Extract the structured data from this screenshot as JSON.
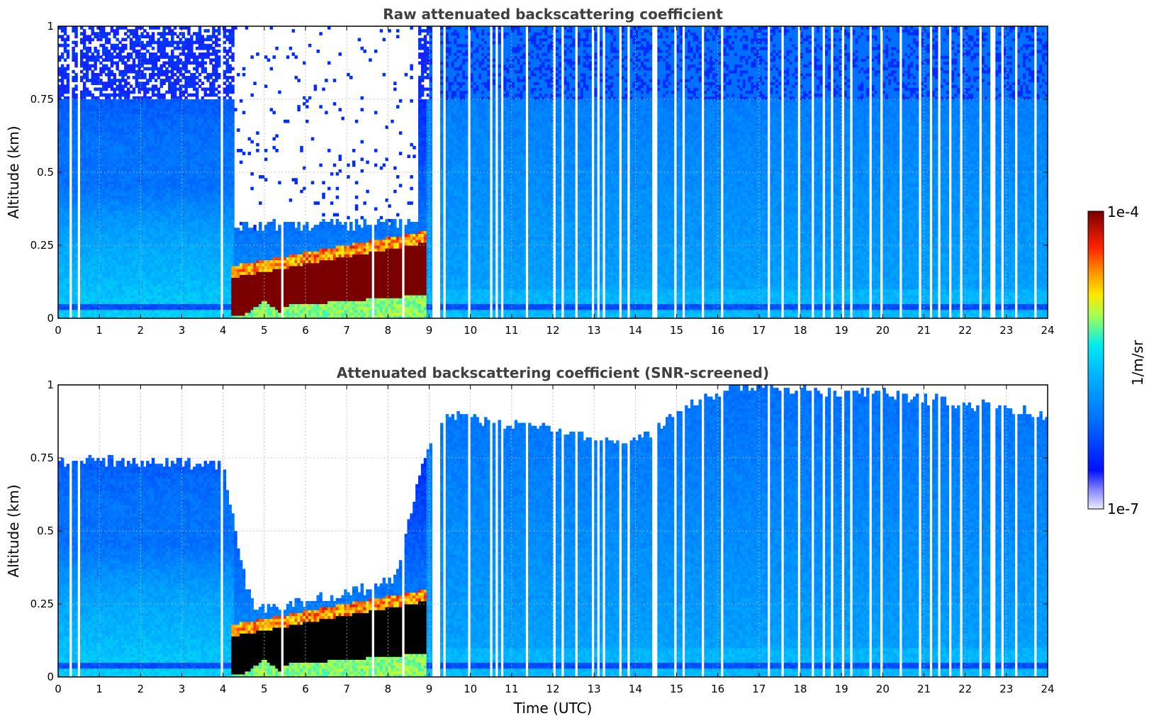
{
  "chart_data": [
    {
      "type": "heatmap",
      "title": "Raw attenuated backscattering coefficient",
      "xlabel": "",
      "ylabel": "Altitude (km)",
      "xlim": [
        0,
        24
      ],
      "ylim": [
        0,
        1
      ],
      "x_ticks": [
        "0",
        "1",
        "2",
        "3",
        "4",
        "5",
        "6",
        "7",
        "8",
        "9",
        "10",
        "11",
        "12",
        "13",
        "14",
        "15",
        "16",
        "17",
        "18",
        "19",
        "20",
        "21",
        "22",
        "23",
        "24"
      ],
      "y_ticks": [
        "0",
        "0.25",
        "0.5",
        "0.75",
        "1"
      ],
      "grid": true,
      "screened": false,
      "fog_layer": {
        "start_utc": 4.2,
        "end_utc": 8.9,
        "base_km": 0.05,
        "top_km": 0.28
      },
      "noise_region": {
        "start_utc": 4.3,
        "end_utc": 8.7,
        "bottom_km": 0.3
      },
      "near_surface_band_km": 0.04
    },
    {
      "type": "heatmap",
      "title": "Attenuated backscattering coefficient (SNR-screened)",
      "xlabel": "Time (UTC)",
      "ylabel": "Altitude (km)",
      "xlim": [
        0,
        24
      ],
      "ylim": [
        0,
        1
      ],
      "x_ticks": [
        "0",
        "1",
        "2",
        "3",
        "4",
        "5",
        "6",
        "7",
        "8",
        "9",
        "10",
        "11",
        "12",
        "13",
        "14",
        "15",
        "16",
        "17",
        "18",
        "19",
        "20",
        "21",
        "22",
        "23",
        "24"
      ],
      "y_ticks": [
        "0",
        "0.25",
        "0.5",
        "0.75",
        "1"
      ],
      "grid": true,
      "screened": true,
      "fog_layer": {
        "start_utc": 4.2,
        "end_utc": 8.9,
        "base_km": 0.05,
        "top_km": 0.28
      },
      "signal_top_profile_km": [
        [
          0,
          0.74
        ],
        [
          4.0,
          0.73
        ],
        [
          4.3,
          0.5
        ],
        [
          4.6,
          0.3
        ],
        [
          4.8,
          0.23
        ],
        [
          6.5,
          0.27
        ],
        [
          8.2,
          0.33
        ],
        [
          8.6,
          0.6
        ],
        [
          9.0,
          0.8
        ],
        [
          9.5,
          0.9
        ],
        [
          12,
          0.85
        ],
        [
          13.5,
          0.8
        ],
        [
          14.5,
          0.85
        ],
        [
          15.5,
          0.95
        ],
        [
          16.5,
          1.0
        ],
        [
          20,
          0.97
        ],
        [
          23.9,
          0.9
        ]
      ],
      "near_surface_band_km": 0.04
    }
  ],
  "colorbar": {
    "label": "1/m/sr",
    "max_label": "1e-4",
    "min_label": "1e-7",
    "scale": "log",
    "colors": [
      "#e8e8ff",
      "#0a14ff",
      "#0096ff",
      "#00e6ff",
      "#c8ff37",
      "#ffd200",
      "#ff3200",
      "#800000"
    ]
  }
}
